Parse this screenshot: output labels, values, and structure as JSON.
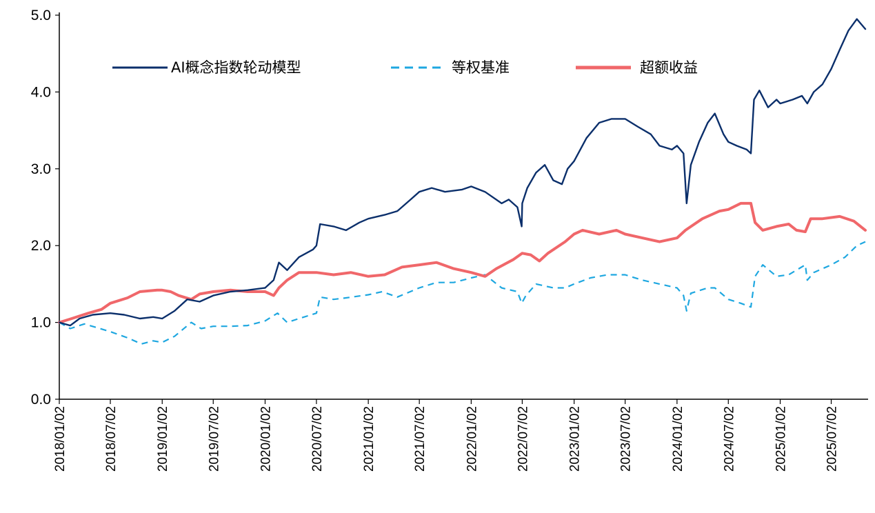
{
  "colors": {
    "model": "#0b2f6b",
    "benchmark": "#1ea7e0",
    "excess": "#f0676a",
    "axis": "#000000"
  },
  "chart_data": {
    "type": "line",
    "title": "",
    "xlabel": "",
    "ylabel": "",
    "ylim": [
      0,
      5
    ],
    "yticks": [
      "0.0",
      "1.0",
      "2.0",
      "3.0",
      "4.0",
      "5.0"
    ],
    "x_tick_labels": [
      "2018/01/02",
      "2018/07/02",
      "2019/01/02",
      "2019/07/02",
      "2020/01/02",
      "2020/07/02",
      "2021/01/02",
      "2021/07/02",
      "2022/01/02",
      "2022/07/02",
      "2023/01/02",
      "2023/07/02",
      "2024/01/02",
      "2024/07/02",
      "2025/01/02",
      "2025/07/02"
    ],
    "x_range": [
      "2018/01/02",
      "2025/10/31"
    ],
    "grid": false,
    "legend_position": "top",
    "series": [
      {
        "name": "AI概念指数轮动模型",
        "key": "model",
        "style": "solid",
        "points": [
          [
            "2018/01/02",
            1.0
          ],
          [
            "2018/02/10",
            0.96
          ],
          [
            "2018/03/15",
            1.05
          ],
          [
            "2018/05/01",
            1.1
          ],
          [
            "2018/07/02",
            1.12
          ],
          [
            "2018/08/20",
            1.1
          ],
          [
            "2018/10/15",
            1.05
          ],
          [
            "2018/12/01",
            1.07
          ],
          [
            "2019/01/02",
            1.05
          ],
          [
            "2019/02/15",
            1.15
          ],
          [
            "2019/04/01",
            1.3
          ],
          [
            "2019/05/15",
            1.27
          ],
          [
            "2019/07/02",
            1.35
          ],
          [
            "2019/09/01",
            1.4
          ],
          [
            "2019/11/01",
            1.42
          ],
          [
            "2020/01/02",
            1.45
          ],
          [
            "2020/02/01",
            1.55
          ],
          [
            "2020/02/20",
            1.78
          ],
          [
            "2020/03/20",
            1.68
          ],
          [
            "2020/05/01",
            1.85
          ],
          [
            "2020/06/20",
            1.95
          ],
          [
            "2020/07/02",
            2.0
          ],
          [
            "2020/07/15",
            2.28
          ],
          [
            "2020/09/01",
            2.25
          ],
          [
            "2020/10/15",
            2.2
          ],
          [
            "2020/12/01",
            2.3
          ],
          [
            "2021/01/02",
            2.35
          ],
          [
            "2021/03/01",
            2.4
          ],
          [
            "2021/04/15",
            2.45
          ],
          [
            "2021/06/01",
            2.6
          ],
          [
            "2021/07/02",
            2.7
          ],
          [
            "2021/08/15",
            2.75
          ],
          [
            "2021/10/01",
            2.7
          ],
          [
            "2021/12/01",
            2.73
          ],
          [
            "2022/01/02",
            2.77
          ],
          [
            "2022/02/20",
            2.7
          ],
          [
            "2022/04/20",
            2.55
          ],
          [
            "2022/05/15",
            2.6
          ],
          [
            "2022/06/15",
            2.5
          ],
          [
            "2022/06/30",
            2.25
          ],
          [
            "2022/07/02",
            2.55
          ],
          [
            "2022/07/20",
            2.75
          ],
          [
            "2022/08/20",
            2.95
          ],
          [
            "2022/09/20",
            3.05
          ],
          [
            "2022/10/20",
            2.85
          ],
          [
            "2022/11/20",
            2.8
          ],
          [
            "2022/12/10",
            3.0
          ],
          [
            "2023/01/02",
            3.1
          ],
          [
            "2023/02/15",
            3.4
          ],
          [
            "2023/04/01",
            3.6
          ],
          [
            "2023/05/15",
            3.65
          ],
          [
            "2023/07/02",
            3.65
          ],
          [
            "2023/08/15",
            3.55
          ],
          [
            "2023/10/01",
            3.45
          ],
          [
            "2023/11/01",
            3.3
          ],
          [
            "2023/12/15",
            3.25
          ],
          [
            "2024/01/02",
            3.3
          ],
          [
            "2024/01/25",
            3.2
          ],
          [
            "2024/02/05",
            2.55
          ],
          [
            "2024/02/20",
            3.05
          ],
          [
            "2024/03/20",
            3.35
          ],
          [
            "2024/04/20",
            3.6
          ],
          [
            "2024/05/15",
            3.72
          ],
          [
            "2024/06/15",
            3.45
          ],
          [
            "2024/07/02",
            3.35
          ],
          [
            "2024/08/01",
            3.3
          ],
          [
            "2024/09/05",
            3.25
          ],
          [
            "2024/09/20",
            3.2
          ],
          [
            "2024/10/01",
            3.9
          ],
          [
            "2024/10/20",
            4.02
          ],
          [
            "2024/11/20",
            3.8
          ],
          [
            "2024/12/20",
            3.9
          ],
          [
            "2025/01/02",
            3.85
          ],
          [
            "2025/02/15",
            3.9
          ],
          [
            "2025/03/20",
            3.95
          ],
          [
            "2025/04/08",
            3.85
          ],
          [
            "2025/05/01",
            4.0
          ],
          [
            "2025/06/01",
            4.1
          ],
          [
            "2025/07/02",
            4.3
          ],
          [
            "2025/08/01",
            4.55
          ],
          [
            "2025/09/01",
            4.8
          ],
          [
            "2025/10/01",
            4.95
          ],
          [
            "2025/10/31",
            4.82
          ]
        ]
      },
      {
        "name": "等权基准",
        "key": "benchmark",
        "style": "dashed",
        "points": [
          [
            "2018/01/02",
            1.0
          ],
          [
            "2018/02/10",
            0.92
          ],
          [
            "2018/04/01",
            0.98
          ],
          [
            "2018/07/02",
            0.88
          ],
          [
            "2018/09/01",
            0.8
          ],
          [
            "2018/10/20",
            0.72
          ],
          [
            "2018/12/01",
            0.76
          ],
          [
            "2019/01/02",
            0.74
          ],
          [
            "2019/02/15",
            0.82
          ],
          [
            "2019/04/15",
            1.0
          ],
          [
            "2019/05/20",
            0.92
          ],
          [
            "2019/07/02",
            0.95
          ],
          [
            "2019/09/01",
            0.95
          ],
          [
            "2019/11/01",
            0.96
          ],
          [
            "2020/01/02",
            1.02
          ],
          [
            "2020/02/15",
            1.12
          ],
          [
            "2020/03/20",
            1.0
          ],
          [
            "2020/05/01",
            1.05
          ],
          [
            "2020/07/02",
            1.12
          ],
          [
            "2020/07/15",
            1.33
          ],
          [
            "2020/09/01",
            1.3
          ],
          [
            "2020/10/15",
            1.32
          ],
          [
            "2021/01/02",
            1.36
          ],
          [
            "2021/02/20",
            1.4
          ],
          [
            "2021/04/15",
            1.33
          ],
          [
            "2021/07/02",
            1.45
          ],
          [
            "2021/09/01",
            1.52
          ],
          [
            "2021/11/01",
            1.52
          ],
          [
            "2022/01/02",
            1.58
          ],
          [
            "2022/02/20",
            1.62
          ],
          [
            "2022/04/20",
            1.45
          ],
          [
            "2022/06/15",
            1.4
          ],
          [
            "2022/06/30",
            1.25
          ],
          [
            "2022/07/15",
            1.35
          ],
          [
            "2022/08/20",
            1.5
          ],
          [
            "2022/10/20",
            1.45
          ],
          [
            "2022/12/01",
            1.45
          ],
          [
            "2023/01/02",
            1.5
          ],
          [
            "2023/03/01",
            1.58
          ],
          [
            "2023/05/01",
            1.62
          ],
          [
            "2023/07/02",
            1.62
          ],
          [
            "2023/09/01",
            1.55
          ],
          [
            "2023/11/01",
            1.5
          ],
          [
            "2024/01/02",
            1.45
          ],
          [
            "2024/01/25",
            1.35
          ],
          [
            "2024/02/05",
            1.15
          ],
          [
            "2024/02/20",
            1.38
          ],
          [
            "2024/04/20",
            1.45
          ],
          [
            "2024/05/15",
            1.45
          ],
          [
            "2024/07/02",
            1.3
          ],
          [
            "2024/08/15",
            1.25
          ],
          [
            "2024/09/20",
            1.2
          ],
          [
            "2024/10/05",
            1.6
          ],
          [
            "2024/11/01",
            1.75
          ],
          [
            "2024/12/20",
            1.6
          ],
          [
            "2025/02/01",
            1.62
          ],
          [
            "2025/04/01",
            1.75
          ],
          [
            "2025/04/08",
            1.55
          ],
          [
            "2025/05/01",
            1.65
          ],
          [
            "2025/07/02",
            1.75
          ],
          [
            "2025/08/20",
            1.85
          ],
          [
            "2025/10/01",
            2.0
          ],
          [
            "2025/10/31",
            2.05
          ]
        ]
      },
      {
        "name": "超额收益",
        "key": "excess",
        "style": "solid-thick",
        "points": [
          [
            "2018/01/02",
            1.0
          ],
          [
            "2018/02/15",
            1.05
          ],
          [
            "2018/04/15",
            1.12
          ],
          [
            "2018/06/01",
            1.17
          ],
          [
            "2018/07/02",
            1.25
          ],
          [
            "2018/09/01",
            1.32
          ],
          [
            "2018/10/15",
            1.4
          ],
          [
            "2018/12/15",
            1.42
          ],
          [
            "2019/01/02",
            1.42
          ],
          [
            "2019/02/01",
            1.4
          ],
          [
            "2019/03/01",
            1.35
          ],
          [
            "2019/04/15",
            1.3
          ],
          [
            "2019/05/15",
            1.37
          ],
          [
            "2019/07/02",
            1.4
          ],
          [
            "2019/09/01",
            1.42
          ],
          [
            "2019/11/01",
            1.4
          ],
          [
            "2020/01/02",
            1.4
          ],
          [
            "2020/02/01",
            1.35
          ],
          [
            "2020/02/20",
            1.45
          ],
          [
            "2020/03/20",
            1.55
          ],
          [
            "2020/05/01",
            1.65
          ],
          [
            "2020/07/02",
            1.65
          ],
          [
            "2020/09/01",
            1.62
          ],
          [
            "2020/11/01",
            1.65
          ],
          [
            "2021/01/02",
            1.6
          ],
          [
            "2021/03/01",
            1.62
          ],
          [
            "2021/05/01",
            1.72
          ],
          [
            "2021/07/02",
            1.75
          ],
          [
            "2021/09/01",
            1.78
          ],
          [
            "2021/11/01",
            1.7
          ],
          [
            "2022/01/02",
            1.65
          ],
          [
            "2022/02/20",
            1.6
          ],
          [
            "2022/04/01",
            1.7
          ],
          [
            "2022/06/01",
            1.82
          ],
          [
            "2022/07/02",
            1.9
          ],
          [
            "2022/08/01",
            1.88
          ],
          [
            "2022/09/01",
            1.8
          ],
          [
            "2022/10/01",
            1.9
          ],
          [
            "2022/12/01",
            2.05
          ],
          [
            "2023/01/02",
            2.15
          ],
          [
            "2023/02/01",
            2.2
          ],
          [
            "2023/04/01",
            2.15
          ],
          [
            "2023/06/01",
            2.2
          ],
          [
            "2023/07/02",
            2.15
          ],
          [
            "2023/09/01",
            2.1
          ],
          [
            "2023/11/01",
            2.05
          ],
          [
            "2024/01/02",
            2.1
          ],
          [
            "2024/02/01",
            2.2
          ],
          [
            "2024/04/01",
            2.35
          ],
          [
            "2024/06/01",
            2.45
          ],
          [
            "2024/07/02",
            2.47
          ],
          [
            "2024/08/15",
            2.55
          ],
          [
            "2024/09/20",
            2.55
          ],
          [
            "2024/10/05",
            2.3
          ],
          [
            "2024/11/01",
            2.2
          ],
          [
            "2024/12/20",
            2.25
          ],
          [
            "2025/02/01",
            2.28
          ],
          [
            "2025/03/01",
            2.2
          ],
          [
            "2025/04/01",
            2.18
          ],
          [
            "2025/04/20",
            2.35
          ],
          [
            "2025/06/01",
            2.35
          ],
          [
            "2025/08/01",
            2.38
          ],
          [
            "2025/09/20",
            2.32
          ],
          [
            "2025/10/31",
            2.2
          ]
        ]
      }
    ]
  }
}
